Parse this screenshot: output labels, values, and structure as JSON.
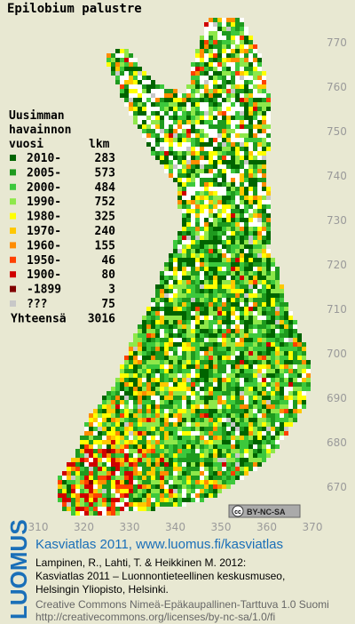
{
  "title": "Epilobium palustre",
  "legend": {
    "heading": [
      "Uusimman",
      "havainnon",
      "vuosi"
    ],
    "count_heading": "lkm",
    "items": [
      {
        "label": "2010-",
        "count": 283,
        "color": "#006400"
      },
      {
        "label": "2005-",
        "count": 573,
        "color": "#1e9a1e"
      },
      {
        "label": "2000-",
        "count": 484,
        "color": "#3cc83c"
      },
      {
        "label": "1990-",
        "count": 752,
        "color": "#8ee84a"
      },
      {
        "label": "1980-",
        "count": 325,
        "color": "#ffff00"
      },
      {
        "label": "1970-",
        "count": 240,
        "color": "#ffc800"
      },
      {
        "label": "1960-",
        "count": 155,
        "color": "#ff8c00"
      },
      {
        "label": "1950-",
        "count": 46,
        "color": "#ff4000"
      },
      {
        "label": "1900-",
        "count": 80,
        "color": "#d00000"
      },
      {
        "label": "-1899",
        "count": 3,
        "color": "#800000"
      },
      {
        "label": "???",
        "count": 75,
        "color": "#c8c8c8"
      }
    ],
    "total_label": "Yhteensä",
    "total": 3016
  },
  "map": {
    "xticks": [
      310,
      320,
      330,
      340,
      350,
      360,
      370
    ],
    "yticks": [
      770,
      760,
      750,
      740,
      730,
      720,
      710,
      700,
      690,
      680,
      670
    ]
  },
  "badge": {
    "icon": "cc",
    "text": "BY-NC-SA"
  },
  "footer": {
    "logo": "LUOMUS",
    "title": "Kasviatlas 2011, www.luomus.fi/kasviatlas",
    "citation": [
      "Lampinen, R., Lahti, T. & Heikkinen M. 2012:",
      "Kasviatlas 2011 – Luonnontieteellinen keskusmuseo,",
      "Helsingin Yliopisto, Helsinki."
    ],
    "license": [
      "Creative Commons Nimeä-Epäkaupallinen-Tarttuva 1.0 Suomi",
      "http://creativecommons.org/licenses/by-nc-sa/1.0/fi"
    ]
  }
}
